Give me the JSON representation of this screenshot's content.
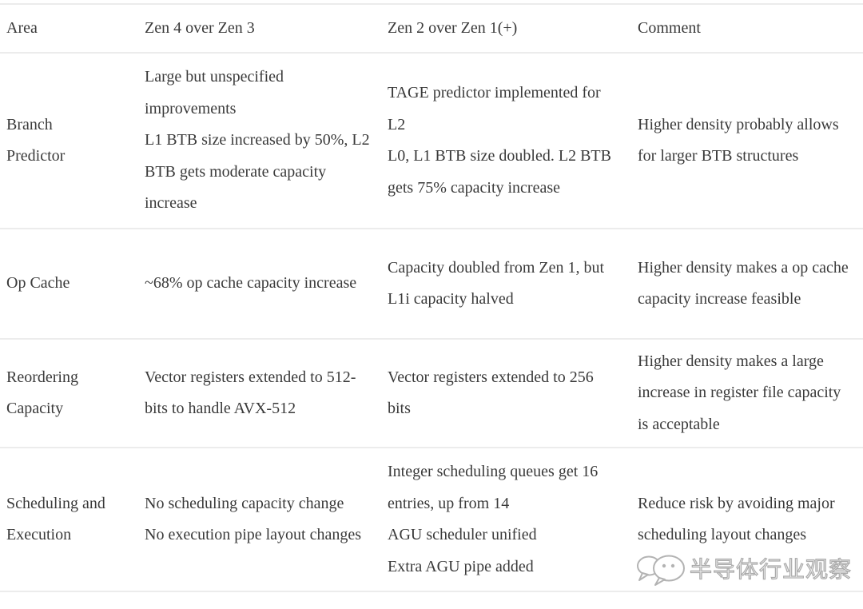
{
  "table": {
    "columns": [
      "Area",
      "Zen 4 over Zen 3",
      "Zen 2 over Zen 1(+)",
      "Comment"
    ],
    "rows": [
      {
        "area": "Branch Predictor",
        "zen4_over_zen3": [
          "Large but unspecified improvements",
          "L1 BTB size increased by 50%, L2 BTB gets moderate capacity increase"
        ],
        "zen2_over_zen1": [
          "TAGE predictor implemented for L2",
          "L0, L1 BTB size doubled. L2 BTB gets 75% capacity increase"
        ],
        "comment": [
          "Higher density probably allows for larger BTB structures"
        ]
      },
      {
        "area": "Op Cache",
        "zen4_over_zen3": [
          "~68% op cache capacity increase"
        ],
        "zen2_over_zen1": [
          "Capacity doubled from Zen 1, but L1i capacity halved"
        ],
        "comment": [
          "Higher density makes a op cache capacity increase feasible"
        ]
      },
      {
        "area": "Reordering Capacity",
        "zen4_over_zen3": [
          "Vector registers extended to 512-bits to handle AVX-512"
        ],
        "zen2_over_zen1": [
          "Vector registers extended to 256 bits"
        ],
        "comment": [
          "Higher density makes a large increase in register file capacity is acceptable"
        ]
      },
      {
        "area": "Scheduling and Execution",
        "zen4_over_zen3": [
          "No scheduling capacity change",
          "No execution pipe layout changes"
        ],
        "zen2_over_zen1": [
          "Integer scheduling queues get 16 entries, up from 14",
          "AGU scheduler unified",
          "Extra AGU pipe added"
        ],
        "comment": [
          "Reduce risk by avoiding major scheduling layout changes"
        ]
      }
    ]
  },
  "watermark": {
    "icon": "wechat-logo-icon",
    "text": "半导体行业观察"
  },
  "colors": {
    "text": "#3a3a3a",
    "divider": "#ececec",
    "watermark_text": "#c9c9c9"
  }
}
